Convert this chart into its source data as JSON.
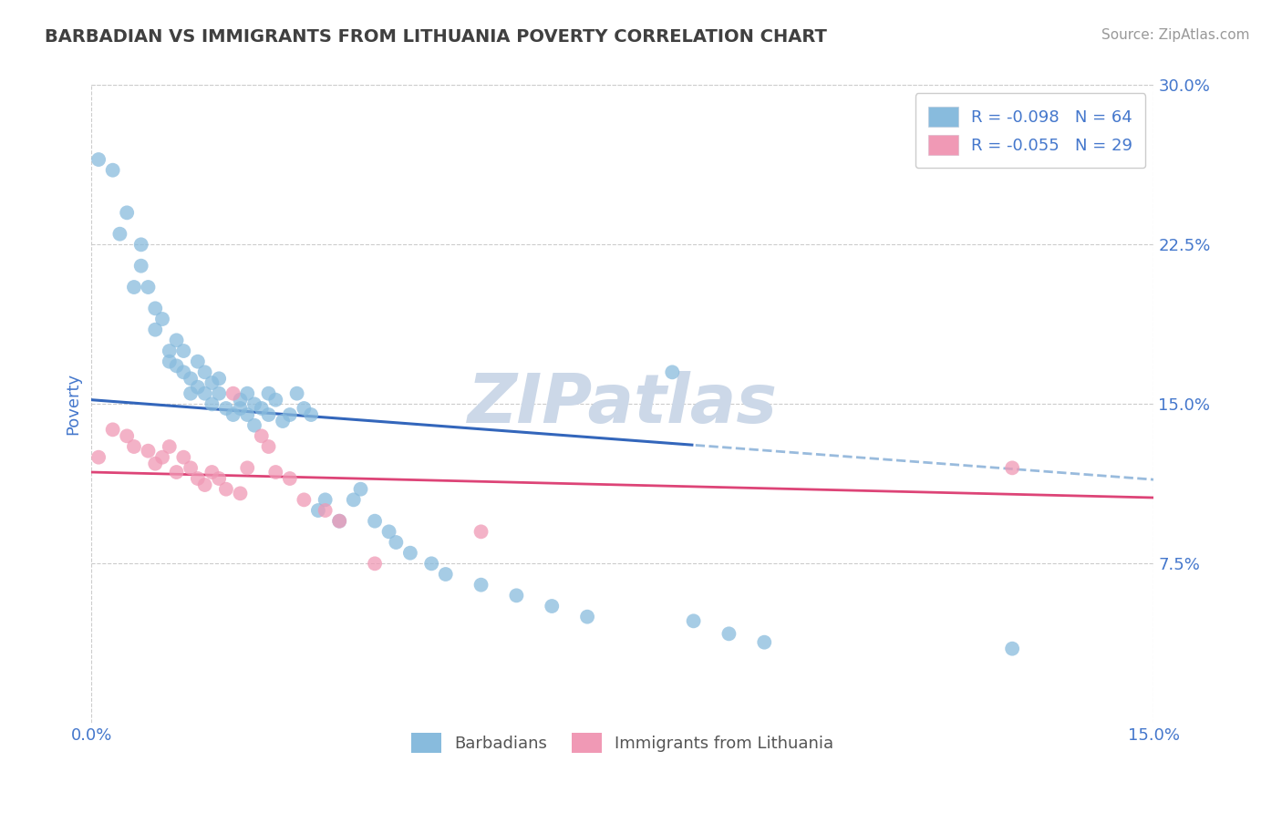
{
  "title": "BARBADIAN VS IMMIGRANTS FROM LITHUANIA POVERTY CORRELATION CHART",
  "source_text": "Source: ZipAtlas.com",
  "ylabel": "Poverty",
  "xlim": [
    0.0,
    0.15
  ],
  "ylim": [
    0.0,
    0.3
  ],
  "yticks": [
    0.075,
    0.15,
    0.225,
    0.3
  ],
  "ytick_labels": [
    "7.5%",
    "15.0%",
    "22.5%",
    "30.0%"
  ],
  "xticks": [
    0.0,
    0.15
  ],
  "xtick_labels": [
    "0.0%",
    "15.0%"
  ],
  "legend_entry1": "R = -0.098   N = 64",
  "legend_entry2": "R = -0.055   N = 29",
  "legend_labels_bottom": [
    "Barbadians",
    "Immigrants from Lithuania"
  ],
  "series1_color": "#88bbdd",
  "series2_color": "#f099b5",
  "trendline1_color": "#3366bb",
  "trendline2_color": "#dd4477",
  "trendline_dashed_color": "#99bbdd",
  "watermark_color": "#ccd8e8",
  "background_color": "#ffffff",
  "grid_color": "#cccccc",
  "title_color": "#404040",
  "tick_label_color": "#4477cc",
  "legend_text_color": "#4477cc",
  "source_color": "#999999",
  "series1_x": [
    0.001,
    0.003,
    0.004,
    0.005,
    0.006,
    0.007,
    0.007,
    0.008,
    0.009,
    0.009,
    0.01,
    0.011,
    0.011,
    0.012,
    0.012,
    0.013,
    0.013,
    0.014,
    0.014,
    0.015,
    0.015,
    0.016,
    0.016,
    0.017,
    0.017,
    0.018,
    0.018,
    0.019,
    0.02,
    0.021,
    0.021,
    0.022,
    0.022,
    0.023,
    0.023,
    0.024,
    0.025,
    0.025,
    0.026,
    0.027,
    0.028,
    0.029,
    0.03,
    0.031,
    0.032,
    0.033,
    0.035,
    0.037,
    0.038,
    0.04,
    0.042,
    0.043,
    0.045,
    0.048,
    0.05,
    0.055,
    0.06,
    0.065,
    0.07,
    0.082,
    0.085,
    0.09,
    0.095,
    0.13
  ],
  "series1_y": [
    0.265,
    0.26,
    0.23,
    0.24,
    0.205,
    0.225,
    0.215,
    0.205,
    0.195,
    0.185,
    0.19,
    0.175,
    0.17,
    0.18,
    0.168,
    0.165,
    0.175,
    0.162,
    0.155,
    0.17,
    0.158,
    0.155,
    0.165,
    0.16,
    0.15,
    0.155,
    0.162,
    0.148,
    0.145,
    0.152,
    0.148,
    0.155,
    0.145,
    0.15,
    0.14,
    0.148,
    0.155,
    0.145,
    0.152,
    0.142,
    0.145,
    0.155,
    0.148,
    0.145,
    0.1,
    0.105,
    0.095,
    0.105,
    0.11,
    0.095,
    0.09,
    0.085,
    0.08,
    0.075,
    0.07,
    0.065,
    0.06,
    0.055,
    0.05,
    0.165,
    0.048,
    0.042,
    0.038,
    0.035
  ],
  "series2_x": [
    0.001,
    0.003,
    0.005,
    0.006,
    0.008,
    0.009,
    0.01,
    0.011,
    0.012,
    0.013,
    0.014,
    0.015,
    0.016,
    0.017,
    0.018,
    0.019,
    0.02,
    0.021,
    0.022,
    0.024,
    0.025,
    0.026,
    0.028,
    0.03,
    0.033,
    0.035,
    0.04,
    0.055,
    0.13
  ],
  "series2_y": [
    0.125,
    0.138,
    0.135,
    0.13,
    0.128,
    0.122,
    0.125,
    0.13,
    0.118,
    0.125,
    0.12,
    0.115,
    0.112,
    0.118,
    0.115,
    0.11,
    0.155,
    0.108,
    0.12,
    0.135,
    0.13,
    0.118,
    0.115,
    0.105,
    0.1,
    0.095,
    0.075,
    0.09,
    0.12
  ],
  "trendline1_intercept": 0.152,
  "trendline1_slope": -0.25,
  "trendline2_intercept": 0.118,
  "trendline2_slope": -0.08,
  "trendline_split": 0.085
}
